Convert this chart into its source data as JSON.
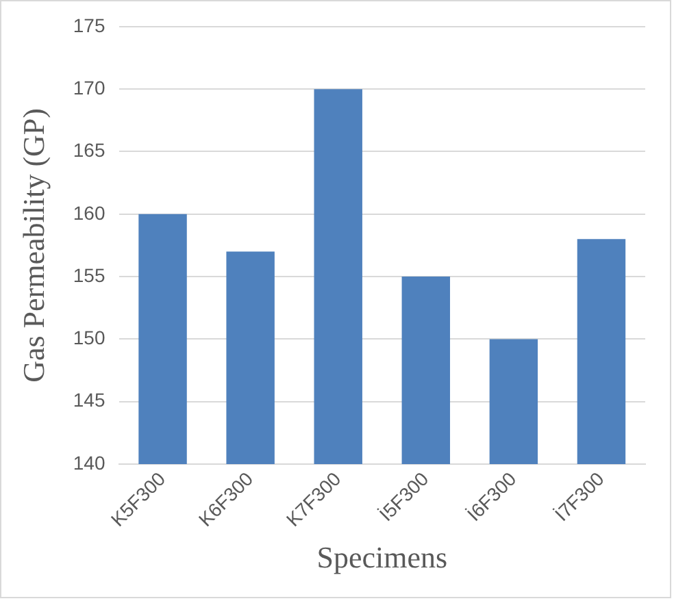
{
  "chart_data": {
    "type": "bar",
    "xlabel": "Specimens",
    "ylabel": "Gas Permeability (GP)",
    "categories": [
      "K5F300",
      "K6F300",
      "K7F300",
      "İ5F300",
      "İ6F300",
      "İ7F300"
    ],
    "values": [
      160,
      157,
      170,
      155,
      150,
      158
    ],
    "color": "#4f81bd",
    "ylim": [
      140,
      175
    ],
    "yticks": [
      140,
      145,
      150,
      155,
      160,
      165,
      170,
      175
    ],
    "grid": "y"
  }
}
